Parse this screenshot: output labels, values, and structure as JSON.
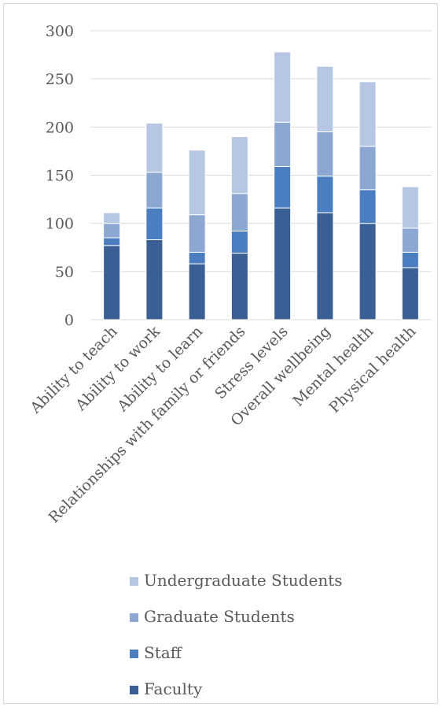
{
  "chart_data": {
    "type": "bar",
    "stacked": true,
    "categories": [
      "Ability to teach",
      "Ability to work",
      "Ability to learn",
      "Relationships with family or friends",
      "Stress levels",
      "Overall wellbeing",
      "Mental health",
      "Physical health"
    ],
    "series": [
      {
        "name": "Faculty",
        "color": "#3a5f94",
        "values": [
          77,
          83,
          58,
          69,
          116,
          111,
          100,
          54
        ]
      },
      {
        "name": "Staff",
        "color": "#4a7ec0",
        "values": [
          8,
          33,
          12,
          23,
          43,
          38,
          35,
          16
        ]
      },
      {
        "name": "Graduate Students",
        "color": "#8ba7d2",
        "values": [
          15,
          37,
          39,
          39,
          46,
          46,
          45,
          25
        ]
      },
      {
        "name": "Undergraduate Students",
        "color": "#b7c6e2",
        "values": [
          11,
          51,
          67,
          59,
          73,
          68,
          67,
          43
        ]
      }
    ],
    "ylim": [
      0,
      300
    ],
    "yticks": [
      0,
      50,
      100,
      150,
      200,
      250,
      300
    ],
    "grid": true,
    "legend_position": "bottom",
    "legend_order": [
      "Undergraduate Students",
      "Graduate Students",
      "Staff",
      "Faculty"
    ]
  }
}
